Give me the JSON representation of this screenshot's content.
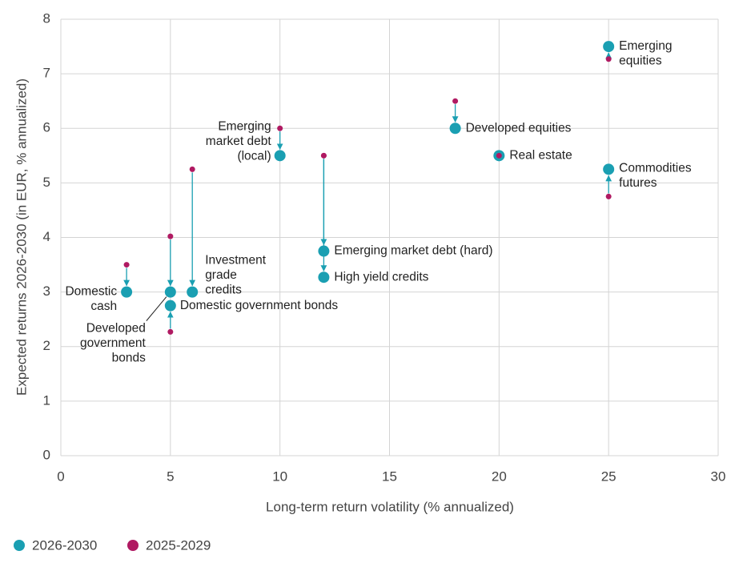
{
  "chart_data": {
    "type": "scatter",
    "x_label": "Long-term return volatility (% annualized)",
    "y_label": "Expected returns 2026-2030 (in EUR, % annualized)",
    "xlim": [
      0,
      30
    ],
    "xticks": [
      0,
      5,
      10,
      15,
      20,
      25,
      30
    ],
    "ylim": [
      0,
      8
    ],
    "yticks": [
      0,
      1,
      2,
      3,
      4,
      5,
      6,
      7,
      8
    ],
    "grid": true,
    "x": [
      3,
      5,
      5,
      6,
      10,
      12,
      12,
      18,
      20,
      25,
      25
    ],
    "point_labels": [
      [
        "Domestic",
        "cash"
      ],
      [
        "Domestic government bonds"
      ],
      [
        "Developed",
        "government",
        "bonds"
      ],
      [
        "Investment",
        "grade",
        "credits"
      ],
      [
        "Emerging",
        "market debt",
        "(local)"
      ],
      [
        "Emerging market debt (hard)"
      ],
      [
        "High yield credits"
      ],
      [
        "Developed equities"
      ],
      [
        "Real estate"
      ],
      [
        "Emerging",
        "equities"
      ],
      [
        "Commodities",
        "futures"
      ]
    ],
    "series": [
      {
        "name": "2026-2030",
        "color": "#1a9fb2",
        "values": [
          3.0,
          2.75,
          3.0,
          3.0,
          5.5,
          3.75,
          3.27,
          6.0,
          5.5,
          7.5,
          5.25
        ]
      },
      {
        "name": "2025-2029",
        "color": "#b01a62",
        "values": [
          3.5,
          2.27,
          4.02,
          5.25,
          6.0,
          5.5,
          5.5,
          6.5,
          5.5,
          7.27,
          4.75
        ]
      }
    ]
  }
}
